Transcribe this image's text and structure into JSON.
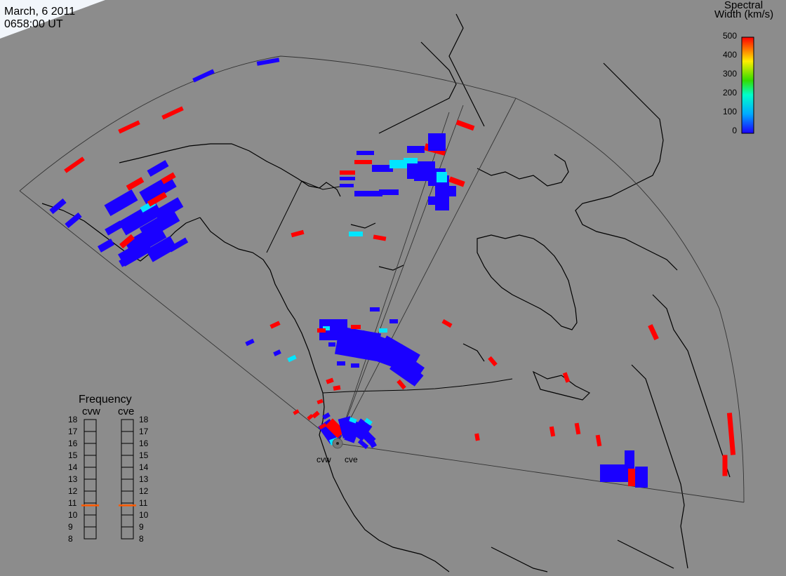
{
  "header": {
    "date": "March, 6 2011",
    "time": "0658:00 UT"
  },
  "colorbar": {
    "title_line1": "Spectral",
    "title_line2": "Width (km/s)",
    "ticks": [
      "500",
      "400",
      "300",
      "200",
      "100",
      "0"
    ],
    "min": 0,
    "max": 500,
    "colors": [
      "#1a00ff",
      "#00ffff",
      "#00ff00",
      "#ffff00",
      "#ff0000"
    ]
  },
  "frequency_panel": {
    "title": "Frequency",
    "radars": [
      {
        "name": "cvw",
        "frequency_mhz": 10.8
      },
      {
        "name": "cve",
        "frequency_mhz": 10.8
      }
    ],
    "ticks": [
      "18",
      "17",
      "16",
      "15",
      "14",
      "13",
      "12",
      "11",
      "10",
      "9",
      "8"
    ],
    "range_mhz": [
      8,
      18
    ]
  },
  "radar_sites": [
    {
      "label": "cvw"
    },
    {
      "label": "cve"
    }
  ],
  "colors": {
    "background": "#8c8c8c",
    "low_width": "#1a00ff",
    "mid_width": "#00e5ff",
    "high_width": "#ff0000",
    "frequency_marker": "#ff5a00",
    "corner_shading": "#f2f6fb"
  }
}
